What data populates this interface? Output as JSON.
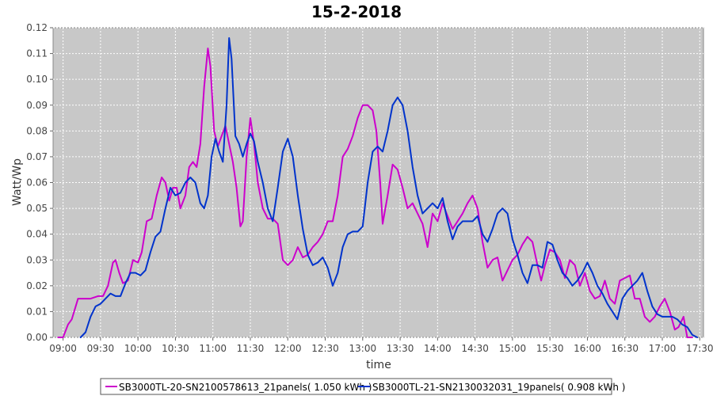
{
  "chart_data": {
    "type": "line",
    "title": "15-2-2018",
    "xlabel": "time",
    "ylabel": "Watt/Wp",
    "ylim": [
      0,
      0.12
    ],
    "xlim": [
      "08:52",
      "17:33"
    ],
    "yticks": [
      0.0,
      0.01,
      0.02,
      0.03,
      0.04,
      0.05,
      0.06,
      0.07,
      0.08,
      0.09,
      0.1,
      0.11,
      0.12
    ],
    "xticks": [
      "09:00",
      "09:30",
      "10:00",
      "10:30",
      "11:00",
      "11:30",
      "12:00",
      "12:30",
      "13:00",
      "13:30",
      "14:00",
      "14:30",
      "15:00",
      "15:30",
      "16:00",
      "16:30",
      "17:00",
      "17:30"
    ],
    "grid": true,
    "plot_background": "#c8c8c8",
    "legend_position": "bottom",
    "series": [
      {
        "name": "SB3000TL-20-SN2100578613_21panels( 1.050 kWh )",
        "color": "#cc00cc",
        "points": [
          [
            "08:56",
            0.0
          ],
          [
            "09:00",
            0.0
          ],
          [
            "09:04",
            0.005
          ],
          [
            "09:07",
            0.007
          ],
          [
            "09:12",
            0.015
          ],
          [
            "09:16",
            0.015
          ],
          [
            "09:22",
            0.015
          ],
          [
            "09:28",
            0.016
          ],
          [
            "09:32",
            0.016
          ],
          [
            "09:36",
            0.02
          ],
          [
            "09:40",
            0.029
          ],
          [
            "09:42",
            0.03
          ],
          [
            "09:45",
            0.025
          ],
          [
            "09:48",
            0.021
          ],
          [
            "09:52",
            0.022
          ],
          [
            "09:56",
            0.03
          ],
          [
            "10:00",
            0.029
          ],
          [
            "10:03",
            0.033
          ],
          [
            "10:07",
            0.045
          ],
          [
            "10:11",
            0.046
          ],
          [
            "10:15",
            0.055
          ],
          [
            "10:19",
            0.062
          ],
          [
            "10:22",
            0.06
          ],
          [
            "10:25",
            0.053
          ],
          [
            "10:28",
            0.058
          ],
          [
            "10:31",
            0.058
          ],
          [
            "10:34",
            0.05
          ],
          [
            "10:38",
            0.055
          ],
          [
            "10:41",
            0.066
          ],
          [
            "10:44",
            0.068
          ],
          [
            "10:47",
            0.066
          ],
          [
            "10:50",
            0.075
          ],
          [
            "10:53",
            0.097
          ],
          [
            "10:56",
            0.112
          ],
          [
            "10:58",
            0.105
          ],
          [
            "11:01",
            0.08
          ],
          [
            "11:04",
            0.074
          ],
          [
            "11:07",
            0.078
          ],
          [
            "11:10",
            0.082
          ],
          [
            "11:13",
            0.075
          ],
          [
            "11:16",
            0.068
          ],
          [
            "11:19",
            0.058
          ],
          [
            "11:22",
            0.043
          ],
          [
            "11:24",
            0.045
          ],
          [
            "11:27",
            0.07
          ],
          [
            "11:30",
            0.085
          ],
          [
            "11:33",
            0.075
          ],
          [
            "11:36",
            0.06
          ],
          [
            "11:40",
            0.05
          ],
          [
            "11:44",
            0.046
          ],
          [
            "11:48",
            0.046
          ],
          [
            "11:52",
            0.044
          ],
          [
            "11:56",
            0.03
          ],
          [
            "12:00",
            0.028
          ],
          [
            "12:04",
            0.03
          ],
          [
            "12:08",
            0.035
          ],
          [
            "12:12",
            0.031
          ],
          [
            "12:16",
            0.032
          ],
          [
            "12:20",
            0.035
          ],
          [
            "12:24",
            0.037
          ],
          [
            "12:28",
            0.04
          ],
          [
            "12:32",
            0.045
          ],
          [
            "12:36",
            0.045
          ],
          [
            "12:40",
            0.055
          ],
          [
            "12:44",
            0.07
          ],
          [
            "12:48",
            0.073
          ],
          [
            "12:52",
            0.078
          ],
          [
            "12:56",
            0.085
          ],
          [
            "13:00",
            0.09
          ],
          [
            "13:04",
            0.09
          ],
          [
            "13:08",
            0.088
          ],
          [
            "13:11",
            0.08
          ],
          [
            "13:14",
            0.06
          ],
          [
            "13:16",
            0.044
          ],
          [
            "13:20",
            0.055
          ],
          [
            "13:24",
            0.067
          ],
          [
            "13:28",
            0.065
          ],
          [
            "13:32",
            0.058
          ],
          [
            "13:36",
            0.05
          ],
          [
            "13:40",
            0.052
          ],
          [
            "13:44",
            0.048
          ],
          [
            "13:48",
            0.044
          ],
          [
            "13:52",
            0.035
          ],
          [
            "13:56",
            0.048
          ],
          [
            "14:00",
            0.045
          ],
          [
            "14:04",
            0.052
          ],
          [
            "14:08",
            0.047
          ],
          [
            "14:12",
            0.042
          ],
          [
            "14:16",
            0.045
          ],
          [
            "14:20",
            0.048
          ],
          [
            "14:24",
            0.052
          ],
          [
            "14:28",
            0.055
          ],
          [
            "14:32",
            0.05
          ],
          [
            "14:36",
            0.037
          ],
          [
            "14:40",
            0.027
          ],
          [
            "14:44",
            0.03
          ],
          [
            "14:48",
            0.031
          ],
          [
            "14:52",
            0.022
          ],
          [
            "14:56",
            0.026
          ],
          [
            "15:00",
            0.03
          ],
          [
            "15:04",
            0.032
          ],
          [
            "15:08",
            0.036
          ],
          [
            "15:12",
            0.039
          ],
          [
            "15:16",
            0.037
          ],
          [
            "15:20",
            0.028
          ],
          [
            "15:23",
            0.022
          ],
          [
            "15:26",
            0.028
          ],
          [
            "15:30",
            0.034
          ],
          [
            "15:34",
            0.033
          ],
          [
            "15:38",
            0.03
          ],
          [
            "15:42",
            0.023
          ],
          [
            "15:46",
            0.03
          ],
          [
            "15:50",
            0.028
          ],
          [
            "15:54",
            0.02
          ],
          [
            "15:58",
            0.025
          ],
          [
            "16:02",
            0.018
          ],
          [
            "16:06",
            0.015
          ],
          [
            "16:10",
            0.016
          ],
          [
            "16:14",
            0.022
          ],
          [
            "16:18",
            0.015
          ],
          [
            "16:22",
            0.013
          ],
          [
            "16:26",
            0.022
          ],
          [
            "16:30",
            0.023
          ],
          [
            "16:34",
            0.024
          ],
          [
            "16:38",
            0.015
          ],
          [
            "16:42",
            0.015
          ],
          [
            "16:46",
            0.008
          ],
          [
            "16:50",
            0.006
          ],
          [
            "16:54",
            0.008
          ],
          [
            "16:58",
            0.012
          ],
          [
            "17:02",
            0.015
          ],
          [
            "17:06",
            0.01
          ],
          [
            "17:10",
            0.003
          ],
          [
            "17:13",
            0.004
          ],
          [
            "17:17",
            0.008
          ],
          [
            "17:20",
            0.0
          ],
          [
            "17:24",
            0.0
          ]
        ]
      },
      {
        "name": "SB3000TL-21-SN2130032031_19panels( 0.908 kWh )",
        "color": "#0033cc",
        "points": [
          [
            "09:14",
            0.0
          ],
          [
            "09:18",
            0.002
          ],
          [
            "09:22",
            0.008
          ],
          [
            "09:26",
            0.012
          ],
          [
            "09:30",
            0.013
          ],
          [
            "09:34",
            0.015
          ],
          [
            "09:38",
            0.017
          ],
          [
            "09:42",
            0.016
          ],
          [
            "09:46",
            0.016
          ],
          [
            "09:50",
            0.021
          ],
          [
            "09:54",
            0.025
          ],
          [
            "09:58",
            0.025
          ],
          [
            "10:02",
            0.024
          ],
          [
            "10:06",
            0.026
          ],
          [
            "10:10",
            0.033
          ],
          [
            "10:14",
            0.039
          ],
          [
            "10:18",
            0.041
          ],
          [
            "10:22",
            0.05
          ],
          [
            "10:26",
            0.058
          ],
          [
            "10:30",
            0.055
          ],
          [
            "10:34",
            0.056
          ],
          [
            "10:38",
            0.06
          ],
          [
            "10:42",
            0.062
          ],
          [
            "10:46",
            0.06
          ],
          [
            "10:50",
            0.052
          ],
          [
            "10:53",
            0.05
          ],
          [
            "10:56",
            0.055
          ],
          [
            "10:59",
            0.07
          ],
          [
            "11:02",
            0.077
          ],
          [
            "11:05",
            0.072
          ],
          [
            "11:08",
            0.068
          ],
          [
            "11:11",
            0.09
          ],
          [
            "11:13",
            0.116
          ],
          [
            "11:15",
            0.108
          ],
          [
            "11:18",
            0.078
          ],
          [
            "11:21",
            0.075
          ],
          [
            "11:24",
            0.07
          ],
          [
            "11:27",
            0.075
          ],
          [
            "11:30",
            0.079
          ],
          [
            "11:33",
            0.076
          ],
          [
            "11:36",
            0.068
          ],
          [
            "11:40",
            0.06
          ],
          [
            "11:44",
            0.05
          ],
          [
            "11:48",
            0.045
          ],
          [
            "11:52",
            0.058
          ],
          [
            "11:56",
            0.072
          ],
          [
            "12:00",
            0.077
          ],
          [
            "12:04",
            0.07
          ],
          [
            "12:08",
            0.055
          ],
          [
            "12:12",
            0.042
          ],
          [
            "12:16",
            0.032
          ],
          [
            "12:20",
            0.028
          ],
          [
            "12:24",
            0.029
          ],
          [
            "12:28",
            0.031
          ],
          [
            "12:32",
            0.027
          ],
          [
            "12:36",
            0.02
          ],
          [
            "12:40",
            0.025
          ],
          [
            "12:44",
            0.035
          ],
          [
            "12:48",
            0.04
          ],
          [
            "12:52",
            0.041
          ],
          [
            "12:56",
            0.041
          ],
          [
            "13:00",
            0.043
          ],
          [
            "13:04",
            0.06
          ],
          [
            "13:08",
            0.072
          ],
          [
            "13:12",
            0.074
          ],
          [
            "13:16",
            0.072
          ],
          [
            "13:20",
            0.08
          ],
          [
            "13:24",
            0.09
          ],
          [
            "13:28",
            0.093
          ],
          [
            "13:32",
            0.09
          ],
          [
            "13:36",
            0.08
          ],
          [
            "13:40",
            0.066
          ],
          [
            "13:44",
            0.055
          ],
          [
            "13:48",
            0.048
          ],
          [
            "13:52",
            0.05
          ],
          [
            "13:56",
            0.052
          ],
          [
            "14:00",
            0.05
          ],
          [
            "14:04",
            0.054
          ],
          [
            "14:08",
            0.045
          ],
          [
            "14:12",
            0.038
          ],
          [
            "14:16",
            0.043
          ],
          [
            "14:20",
            0.045
          ],
          [
            "14:24",
            0.045
          ],
          [
            "14:28",
            0.045
          ],
          [
            "14:32",
            0.047
          ],
          [
            "14:36",
            0.04
          ],
          [
            "14:40",
            0.037
          ],
          [
            "14:44",
            0.042
          ],
          [
            "14:48",
            0.048
          ],
          [
            "14:52",
            0.05
          ],
          [
            "14:56",
            0.048
          ],
          [
            "15:00",
            0.038
          ],
          [
            "15:04",
            0.032
          ],
          [
            "15:08",
            0.025
          ],
          [
            "15:12",
            0.021
          ],
          [
            "15:16",
            0.028
          ],
          [
            "15:20",
            0.028
          ],
          [
            "15:24",
            0.027
          ],
          [
            "15:28",
            0.037
          ],
          [
            "15:32",
            0.036
          ],
          [
            "15:36",
            0.03
          ],
          [
            "15:40",
            0.025
          ],
          [
            "15:44",
            0.023
          ],
          [
            "15:48",
            0.02
          ],
          [
            "15:52",
            0.022
          ],
          [
            "15:56",
            0.025
          ],
          [
            "16:00",
            0.029
          ],
          [
            "16:04",
            0.025
          ],
          [
            "16:08",
            0.02
          ],
          [
            "16:12",
            0.017
          ],
          [
            "16:16",
            0.013
          ],
          [
            "16:20",
            0.01
          ],
          [
            "16:24",
            0.007
          ],
          [
            "16:28",
            0.015
          ],
          [
            "16:32",
            0.018
          ],
          [
            "16:36",
            0.02
          ],
          [
            "16:40",
            0.022
          ],
          [
            "16:44",
            0.025
          ],
          [
            "16:48",
            0.018
          ],
          [
            "16:52",
            0.012
          ],
          [
            "16:56",
            0.009
          ],
          [
            "17:00",
            0.008
          ],
          [
            "17:04",
            0.008
          ],
          [
            "17:08",
            0.008
          ],
          [
            "17:12",
            0.007
          ],
          [
            "17:16",
            0.005
          ],
          [
            "17:20",
            0.004
          ],
          [
            "17:24",
            0.001
          ],
          [
            "17:28",
            0.0
          ]
        ]
      }
    ]
  }
}
